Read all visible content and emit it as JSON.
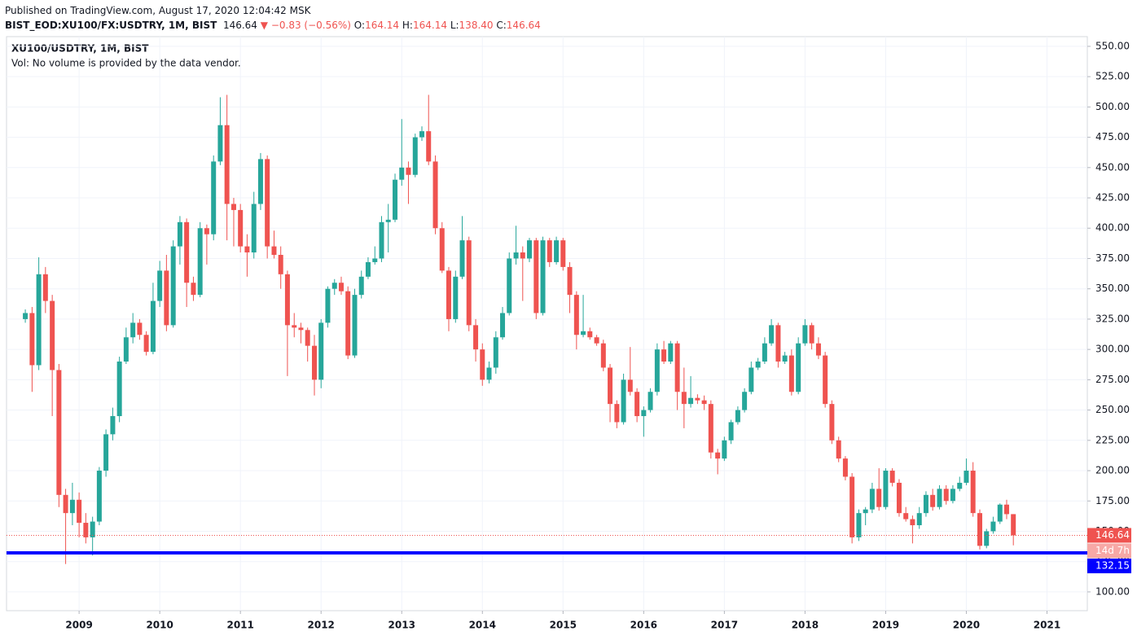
{
  "header": {
    "published": "Published on TradingView.com, August 17, 2020 12:04:42 MSK",
    "symbol": "BIST_EOD:XU100/FX:USDTRY, 1M, BIST",
    "price": "146.64",
    "change": "−0.83 (−0.56%)",
    "ohlc": [
      {
        "label": "O:",
        "value": "164.14"
      },
      {
        "label": "H:",
        "value": "164.14"
      },
      {
        "label": "L:",
        "value": "138.40"
      },
      {
        "label": "C:",
        "value": "146.64"
      }
    ]
  },
  "chart_data": {
    "type": "candlestick",
    "title": "XU100/USDTRY, 1M, BIST",
    "subtitle": "Vol: No volume is provided by the data vendor.",
    "up_color": "#26a69a",
    "down_color": "#ef5350",
    "grid": true,
    "xlim": [
      2008.1,
      2021.5
    ],
    "xticks": [
      2009,
      2010,
      2011,
      2012,
      2013,
      2014,
      2015,
      2016,
      2017,
      2018,
      2019,
      2020,
      2021
    ],
    "ylim": [
      84.5,
      558
    ],
    "yticks": [
      {
        "value": 100,
        "label": "100.00"
      },
      {
        "value": 125,
        "label": "125.00"
      },
      {
        "value": 150,
        "label": "150.00"
      },
      {
        "value": 175,
        "label": "175.00"
      },
      {
        "value": 200,
        "label": "200.00"
      },
      {
        "value": 225,
        "label": "225.00"
      },
      {
        "value": 250,
        "label": "250.00"
      },
      {
        "value": 275,
        "label": "275.00"
      },
      {
        "value": 300,
        "label": "300.00"
      },
      {
        "value": 325,
        "label": "325.00"
      },
      {
        "value": 350,
        "label": "350.00"
      },
      {
        "value": 375,
        "label": "375.00"
      },
      {
        "value": 400,
        "label": "400.00"
      },
      {
        "value": 425,
        "label": "425.00"
      },
      {
        "value": 450,
        "label": "450.00"
      },
      {
        "value": 475,
        "label": "475.00"
      },
      {
        "value": 500,
        "label": "500.00"
      },
      {
        "value": 525,
        "label": "525.00"
      },
      {
        "value": 550,
        "label": "550.00"
      }
    ],
    "x": [
      2008.333,
      2008.417,
      2008.5,
      2008.583,
      2008.667,
      2008.75,
      2008.833,
      2008.917,
      2009,
      2009.083,
      2009.167,
      2009.25,
      2009.333,
      2009.417,
      2009.5,
      2009.583,
      2009.667,
      2009.75,
      2009.833,
      2009.917,
      2010,
      2010.083,
      2010.167,
      2010.25,
      2010.333,
      2010.417,
      2010.5,
      2010.583,
      2010.667,
      2010.75,
      2010.833,
      2010.917,
      2011,
      2011.083,
      2011.167,
      2011.25,
      2011.333,
      2011.417,
      2011.5,
      2011.583,
      2011.667,
      2011.75,
      2011.833,
      2011.917,
      2012,
      2012.083,
      2012.167,
      2012.25,
      2012.333,
      2012.417,
      2012.5,
      2012.583,
      2012.667,
      2012.75,
      2012.833,
      2012.917,
      2013,
      2013.083,
      2013.167,
      2013.25,
      2013.333,
      2013.417,
      2013.5,
      2013.583,
      2013.667,
      2013.75,
      2013.833,
      2013.917,
      2014,
      2014.083,
      2014.167,
      2014.25,
      2014.333,
      2014.417,
      2014.5,
      2014.583,
      2014.667,
      2014.75,
      2014.833,
      2014.917,
      2015,
      2015.083,
      2015.167,
      2015.25,
      2015.333,
      2015.417,
      2015.5,
      2015.583,
      2015.667,
      2015.75,
      2015.833,
      2015.917,
      2016,
      2016.083,
      2016.167,
      2016.25,
      2016.333,
      2016.417,
      2016.5,
      2016.583,
      2016.667,
      2016.75,
      2016.833,
      2016.917,
      2017,
      2017.083,
      2017.167,
      2017.25,
      2017.333,
      2017.417,
      2017.5,
      2017.583,
      2017.667,
      2017.75,
      2017.833,
      2017.917,
      2018,
      2018.083,
      2018.167,
      2018.25,
      2018.333,
      2018.417,
      2018.5,
      2018.583,
      2018.667,
      2018.75,
      2018.833,
      2018.917,
      2019,
      2019.083,
      2019.167,
      2019.25,
      2019.333,
      2019.417,
      2019.5,
      2019.583,
      2019.667,
      2019.75,
      2019.833,
      2019.917,
      2020,
      2020.083,
      2020.167,
      2020.25,
      2020.333,
      2020.417,
      2020.5,
      2020.583
    ],
    "open": [
      325,
      330,
      287,
      362,
      340,
      283,
      180,
      165,
      176,
      157,
      145,
      158,
      200,
      230,
      245,
      290,
      310,
      322,
      312,
      298,
      340,
      365,
      320,
      385,
      405,
      355,
      345,
      400,
      395,
      455,
      485,
      420,
      415,
      385,
      380,
      420,
      457,
      385,
      378,
      362,
      320,
      318,
      316,
      303,
      275,
      322,
      350,
      355,
      348,
      295,
      345,
      360,
      372,
      375,
      405,
      407,
      440,
      450,
      444,
      475,
      480,
      455,
      400,
      365,
      325,
      360,
      390,
      320,
      300,
      275,
      285,
      310,
      330,
      375,
      380,
      375,
      390,
      330,
      390,
      372,
      390,
      368,
      345,
      312,
      315,
      310,
      305,
      285,
      255,
      240,
      275,
      265,
      245,
      250,
      265,
      300,
      290,
      305,
      265,
      255,
      260,
      258,
      255,
      215,
      210,
      225,
      240,
      250,
      265,
      285,
      290,
      305,
      320,
      290,
      295,
      265,
      305,
      320,
      305,
      295,
      255,
      225,
      210,
      195,
      145,
      165,
      168,
      185,
      170,
      200,
      190,
      165,
      160,
      155,
      165,
      180,
      170,
      185,
      175,
      185,
      190,
      200,
      165,
      138,
      150,
      158,
      172,
      164.14
    ],
    "high": [
      333,
      335,
      376,
      368,
      345,
      288,
      185,
      190,
      182,
      165,
      162,
      203,
      234,
      252,
      294,
      318,
      330,
      325,
      315,
      355,
      373,
      378,
      390,
      410,
      408,
      360,
      405,
      403,
      460,
      508,
      510,
      425,
      420,
      395,
      430,
      462,
      460,
      398,
      385,
      365,
      330,
      322,
      318,
      312,
      325,
      352,
      358,
      360,
      352,
      350,
      365,
      376,
      385,
      410,
      420,
      445,
      490,
      455,
      478,
      484,
      510,
      460,
      405,
      368,
      365,
      410,
      393,
      325,
      305,
      290,
      315,
      335,
      380,
      402,
      385,
      392,
      392,
      393,
      392,
      393,
      392,
      372,
      348,
      345,
      318,
      312,
      308,
      288,
      258,
      280,
      302,
      268,
      253,
      268,
      305,
      307,
      307,
      307,
      285,
      278,
      263,
      262,
      258,
      218,
      228,
      242,
      253,
      268,
      290,
      293,
      310,
      325,
      322,
      298,
      300,
      310,
      325,
      322,
      310,
      298,
      258,
      228,
      212,
      198,
      168,
      170,
      190,
      202,
      202,
      202,
      193,
      170,
      163,
      170,
      183,
      185,
      188,
      188,
      188,
      195,
      210,
      207,
      168,
      152,
      162,
      173,
      176,
      164.14
    ],
    "low": [
      322,
      265,
      283,
      330,
      245,
      170,
      123,
      155,
      145,
      140,
      130,
      155,
      195,
      225,
      240,
      288,
      305,
      308,
      295,
      296,
      335,
      315,
      318,
      370,
      335,
      340,
      343,
      370,
      390,
      452,
      390,
      385,
      380,
      360,
      375,
      415,
      375,
      375,
      350,
      278,
      310,
      305,
      290,
      262,
      268,
      318,
      345,
      345,
      292,
      293,
      342,
      358,
      370,
      372,
      380,
      405,
      435,
      420,
      442,
      472,
      452,
      395,
      363,
      315,
      322,
      358,
      315,
      290,
      270,
      272,
      280,
      308,
      328,
      370,
      340,
      372,
      325,
      328,
      368,
      370,
      365,
      330,
      300,
      310,
      308,
      303,
      282,
      240,
      235,
      238,
      262,
      240,
      228,
      248,
      262,
      288,
      288,
      250,
      235,
      252,
      255,
      250,
      210,
      197,
      208,
      222,
      238,
      248,
      263,
      283,
      288,
      303,
      285,
      288,
      262,
      263,
      303,
      300,
      292,
      252,
      222,
      207,
      192,
      140,
      142,
      155,
      165,
      167,
      168,
      187,
      162,
      158,
      140,
      152,
      162,
      167,
      168,
      172,
      173,
      183,
      188,
      162,
      135,
      136,
      148,
      156,
      160,
      138.4
    ],
    "close": [
      330,
      287,
      362,
      340,
      283,
      180,
      165,
      176,
      157,
      145,
      158,
      200,
      230,
      245,
      290,
      310,
      322,
      312,
      298,
      340,
      365,
      320,
      385,
      405,
      355,
      345,
      400,
      395,
      455,
      485,
      420,
      415,
      385,
      380,
      420,
      457,
      385,
      378,
      362,
      320,
      318,
      316,
      303,
      275,
      322,
      350,
      355,
      348,
      295,
      345,
      360,
      372,
      375,
      405,
      407,
      440,
      450,
      444,
      475,
      480,
      455,
      400,
      365,
      325,
      360,
      390,
      320,
      300,
      275,
      285,
      310,
      330,
      375,
      380,
      375,
      390,
      330,
      390,
      372,
      390,
      368,
      345,
      312,
      315,
      310,
      305,
      285,
      255,
      240,
      275,
      265,
      245,
      250,
      265,
      300,
      290,
      305,
      265,
      255,
      260,
      258,
      255,
      215,
      210,
      225,
      240,
      250,
      265,
      285,
      290,
      305,
      320,
      290,
      295,
      265,
      305,
      320,
      305,
      295,
      255,
      225,
      210,
      195,
      145,
      165,
      168,
      185,
      170,
      200,
      190,
      165,
      160,
      155,
      165,
      180,
      170,
      185,
      175,
      185,
      190,
      200,
      165,
      138,
      150,
      158,
      172,
      164.14,
      146.64
    ],
    "last_price": 146.64,
    "countdown": "14d 7h",
    "hline": {
      "value": 132.15,
      "color": "#0000ff"
    }
  }
}
